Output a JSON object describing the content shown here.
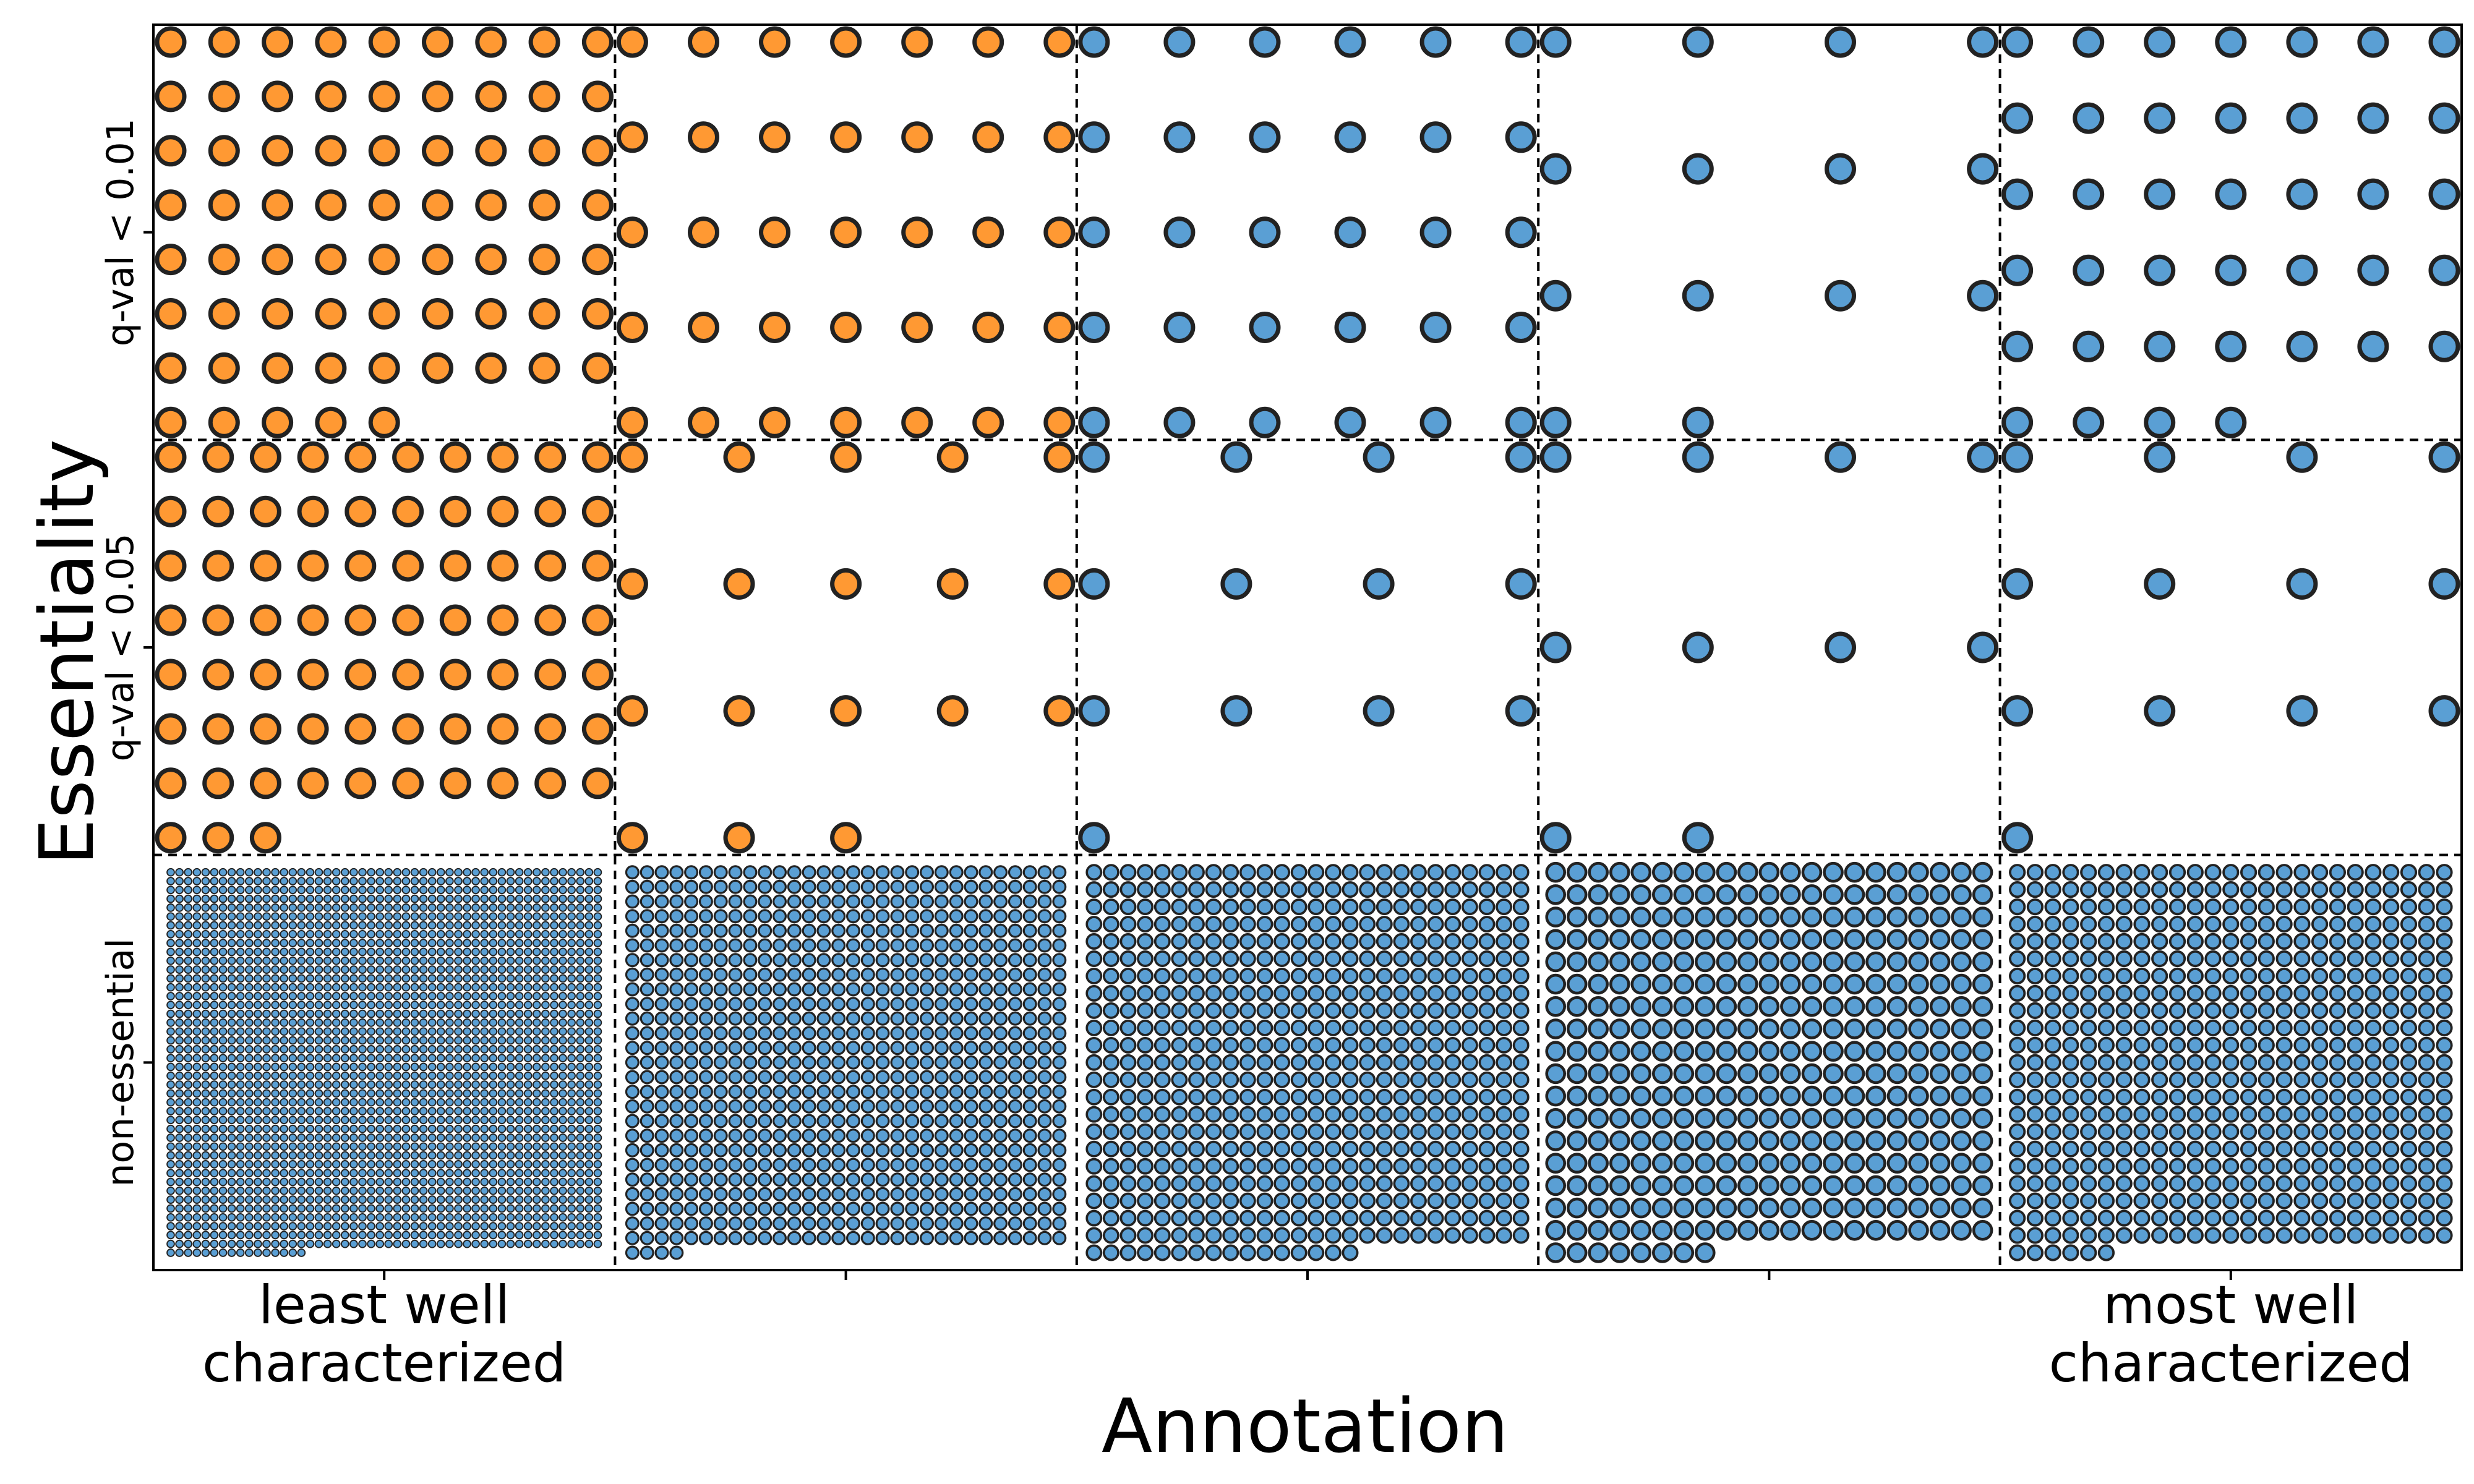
{
  "chart_data": {
    "type": "scatter",
    "subtype": "waffle-grid",
    "title": "",
    "xlabel": "Annotation",
    "ylabel": "Essentiality",
    "x_categories": [
      "least well characterized",
      "",
      "",
      "",
      "most well characterized"
    ],
    "x_category_lines": [
      [
        "least well",
        "characterized"
      ],
      [],
      [],
      [],
      [
        "most well",
        "characterized"
      ]
    ],
    "y_categories": [
      "q-val < 0.01",
      "q-val < 0.05",
      "non-essential"
    ],
    "grid": "dashed cell dividers",
    "colors": {
      "essential_least_characterized": "#ff9933",
      "other": "#5a9fd4",
      "edge": "#222222",
      "frame": "#000000"
    },
    "cells": [
      {
        "row": "q-val < 0.01",
        "col": 1,
        "count": 68,
        "color": "essential_least_characterized"
      },
      {
        "row": "q-val < 0.01",
        "col": 2,
        "count": 35,
        "color": "essential_least_characterized"
      },
      {
        "row": "q-val < 0.01",
        "col": 3,
        "count": 30,
        "color": "other"
      },
      {
        "row": "q-val < 0.01",
        "col": 4,
        "count": 14,
        "color": "other"
      },
      {
        "row": "q-val < 0.01",
        "col": 5,
        "count": 39,
        "color": "other"
      },
      {
        "row": "q-val < 0.05",
        "col": 1,
        "count": 73,
        "color": "essential_least_characterized"
      },
      {
        "row": "q-val < 0.05",
        "col": 2,
        "count": 18,
        "color": "essential_least_characterized"
      },
      {
        "row": "q-val < 0.05",
        "col": 3,
        "count": 13,
        "color": "other"
      },
      {
        "row": "q-val < 0.05",
        "col": 4,
        "count": 10,
        "color": "other"
      },
      {
        "row": "q-val < 0.05",
        "col": 5,
        "count": 13,
        "color": "other"
      },
      {
        "row": "non-essential",
        "col": 1,
        "count": 2166,
        "color": "other"
      },
      {
        "row": "non-essential",
        "col": 2,
        "count": 784,
        "color": "other"
      },
      {
        "row": "non-essential",
        "col": 3,
        "count": 588,
        "color": "other"
      },
      {
        "row": "non-essential",
        "col": 4,
        "count": 365,
        "color": "other"
      },
      {
        "row": "non-essential",
        "col": 5,
        "count": 556,
        "color": "other"
      }
    ]
  }
}
